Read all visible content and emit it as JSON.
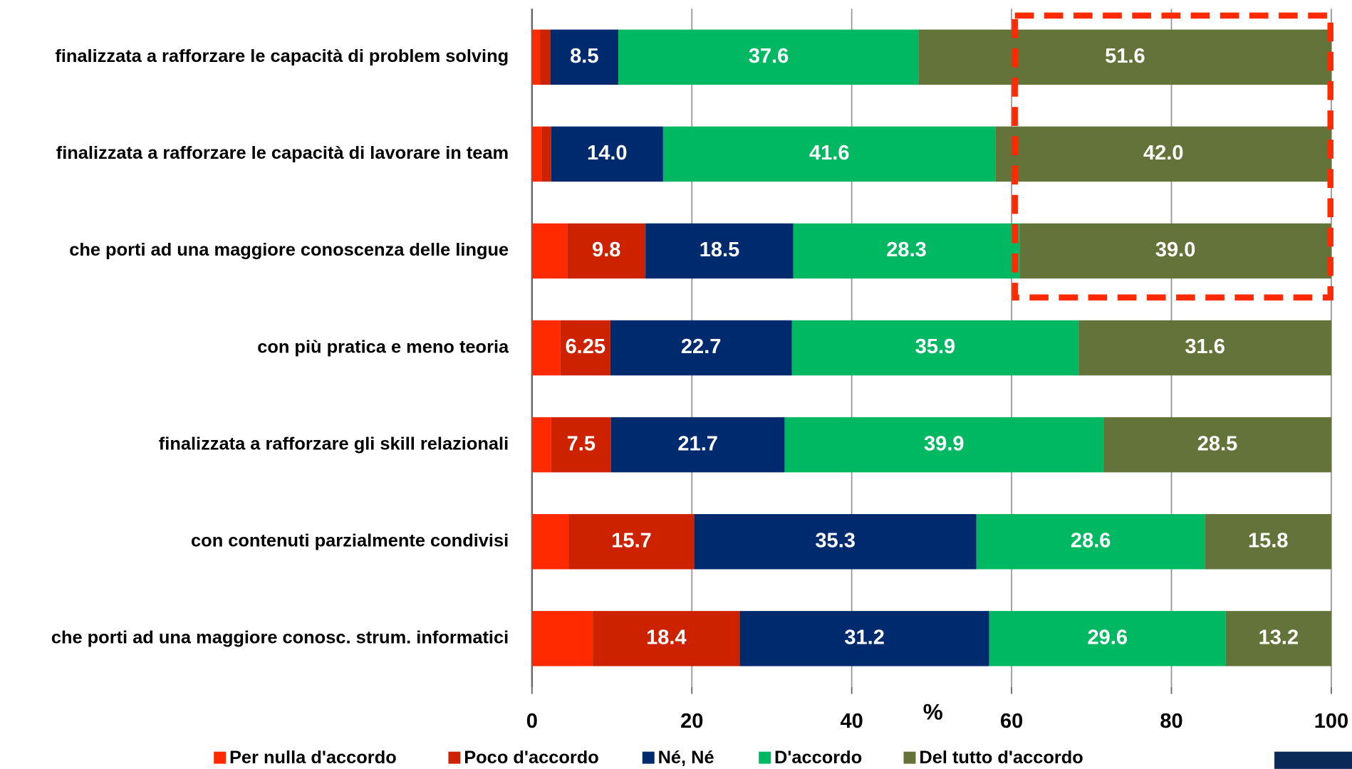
{
  "chart_data": {
    "type": "stacked_bar_horizontal",
    "xlabel": "%",
    "categories": [
      "finalizzata a rafforzare le capacità di problem solving",
      "finalizzata a rafforzare le capacità di lavorare in team",
      "che porti ad una maggiore conoscenza delle lingue",
      "con più pratica e meno teoria",
      "finalizzata a rafforzare gli skill relazionali",
      "con contenuti parzialmente condivisi",
      "che porti ad una maggiore conosc. strum. informatici"
    ],
    "series": [
      {
        "name": "Per nulla d'accordo",
        "color": "#ff2a00",
        "values": [
          1.0,
          1.2,
          4.4,
          3.55,
          2.4,
          4.6,
          7.6
        ]
      },
      {
        "name": "Poco d'accordo",
        "color": "#cc2200",
        "values": [
          1.3,
          1.2,
          9.8,
          6.25,
          7.5,
          15.7,
          18.4
        ],
        "value_labels": [
          null,
          null,
          "9.8",
          "6.25",
          "7.5",
          "15.7",
          "18.4"
        ]
      },
      {
        "name": "Né, Né",
        "color": "#002a6e",
        "values": [
          8.5,
          14.0,
          18.5,
          22.7,
          21.7,
          35.3,
          31.2
        ],
        "value_labels": [
          "8.5",
          "14.0",
          "18.5",
          "22.7",
          "21.7",
          "35.3",
          "31.2"
        ]
      },
      {
        "name": "D'accordo",
        "color": "#00b862",
        "values": [
          37.6,
          41.6,
          28.3,
          35.9,
          39.9,
          28.6,
          29.6
        ],
        "value_labels": [
          "37.6",
          "41.6",
          "28.3",
          "35.9",
          "39.9",
          "28.6",
          "29.6"
        ]
      },
      {
        "name": "Del tutto d'accordo",
        "color": "#63733a",
        "values": [
          51.6,
          42.0,
          39.0,
          31.6,
          28.5,
          15.8,
          13.2
        ],
        "value_labels": [
          "51.6",
          "42.0",
          "39.0",
          "31.6",
          "28.5",
          "15.8",
          "13.2"
        ]
      }
    ],
    "xlim": [
      0,
      100
    ],
    "xticks": [
      0,
      20,
      40,
      60,
      80,
      100
    ],
    "grid": true,
    "legend": "bottom"
  }
}
